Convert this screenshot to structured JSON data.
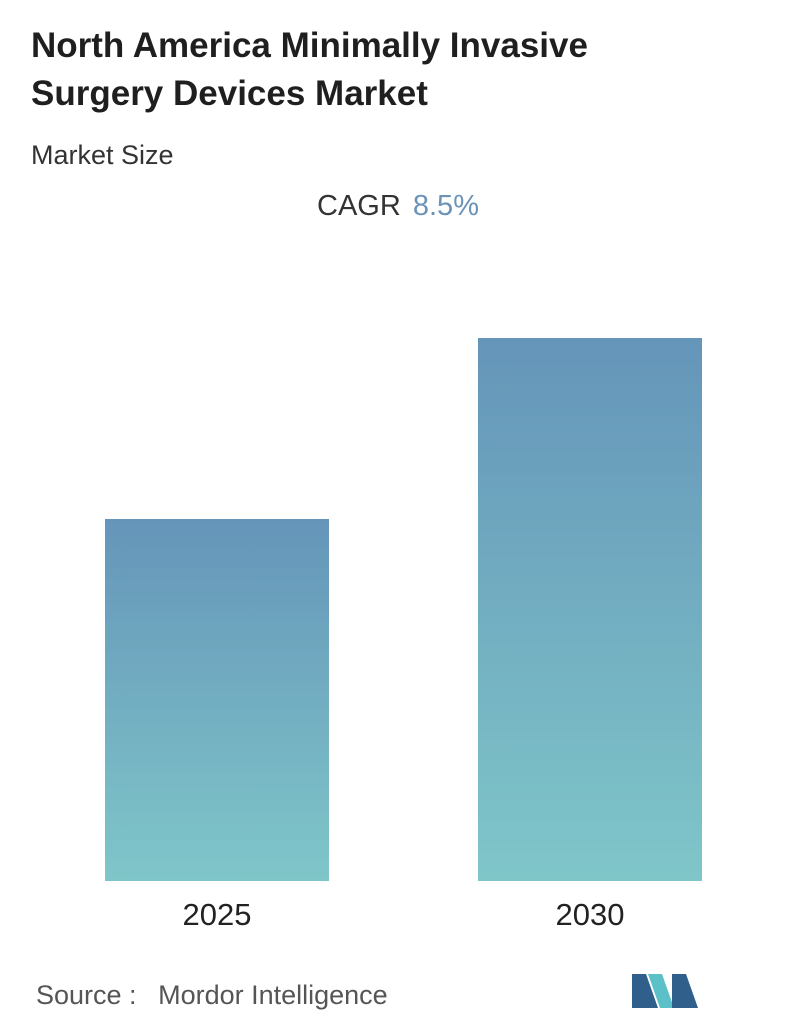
{
  "header": {
    "title_line1": "North America Minimally Invasive",
    "title_line2": "Surgery Devices Market",
    "subtitle": "Market Size",
    "cagr_label": "CAGR",
    "cagr_value": "8.5%"
  },
  "chart_data": {
    "type": "bar",
    "categories": [
      "2025",
      "2030"
    ],
    "values": [
      1.0,
      1.5
    ],
    "title": "North America Minimally Invasive Surgery Devices Market",
    "subtitle": "Market Size",
    "xlabel": "",
    "ylabel": "",
    "ylim": [
      0,
      1.5
    ],
    "grid": false,
    "legend": "none"
  },
  "colors": {
    "bar_top": "#6595b9",
    "bar_bottom": "#7fc6c9",
    "cagr_value": "#6b93b8",
    "logo_dark": "#2f5f8a",
    "logo_light": "#5bc0c8"
  },
  "footer": {
    "source_label": "Source :",
    "source_value": "Mordor Intelligence",
    "logo_icon": "mordor-intelligence-logo-icon"
  }
}
